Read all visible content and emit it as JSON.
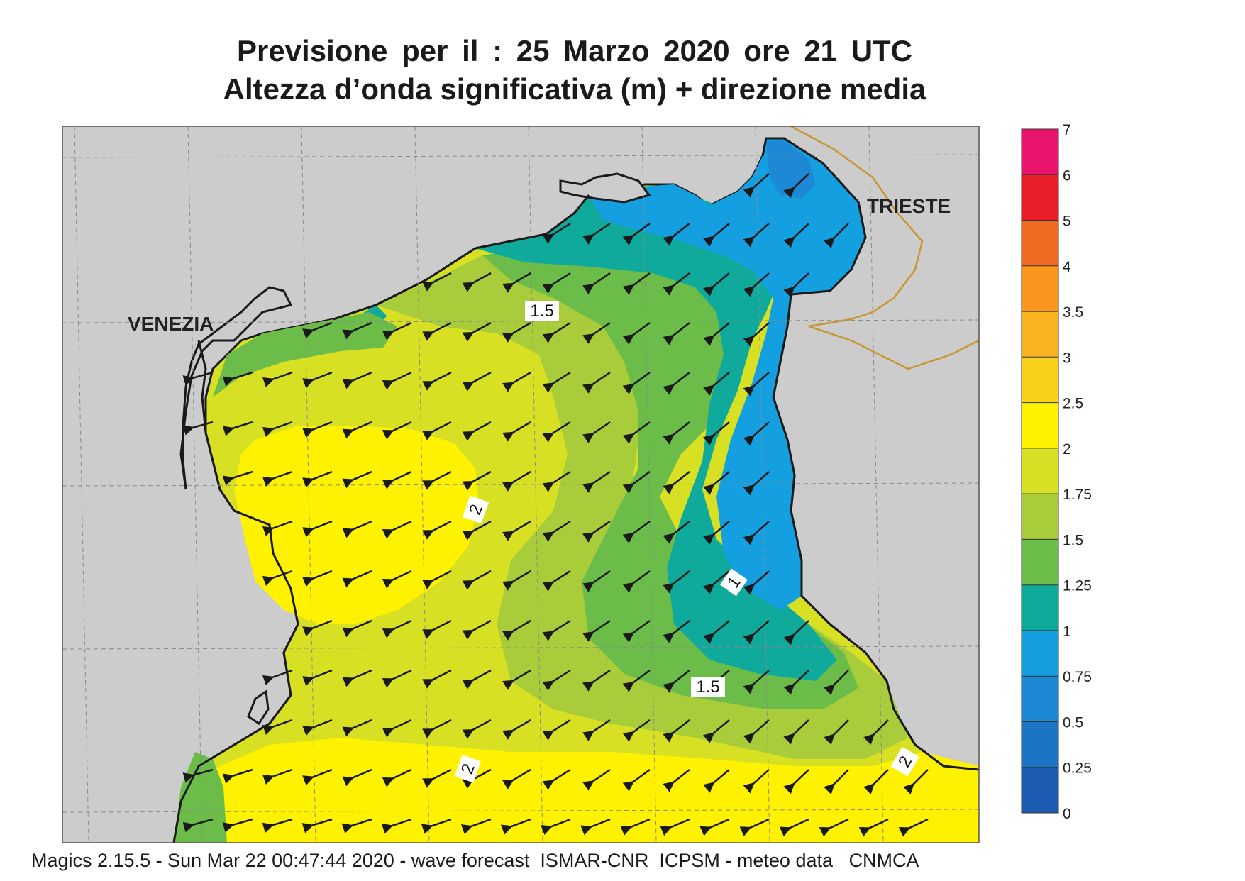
{
  "title": {
    "line1": "Previsione per il  :  25   Marzo   2020   ore 21 UTC",
    "line2": "Altezza d’onda significativa (m) + direzione media"
  },
  "places": {
    "venezia": "VENEZIA",
    "trieste": "TRIESTE"
  },
  "contour_labels": {
    "north_1_5": "1.5",
    "center_2": "2",
    "east_1": "1",
    "south_1_5": "1.5",
    "south_2": "2",
    "southeast_2": "2"
  },
  "colorbar": {
    "ticks": [
      "7",
      "6",
      "5",
      "4",
      "3.5",
      "3",
      "2.5",
      "2",
      "1.75",
      "1.5",
      "1.25",
      "1",
      "0.75",
      "0.5",
      "0.25",
      "0"
    ],
    "colors": [
      "#e8146e",
      "#e81e2a",
      "#f06a22",
      "#f8961e",
      "#f8b41e",
      "#f8d21a",
      "#fff200",
      "#d8e024",
      "#a8cc3a",
      "#6cbc4a",
      "#10aa9c",
      "#14a0e0",
      "#1c88d6",
      "#1c74c4",
      "#1c5cb2"
    ]
  },
  "colors": {
    "land": "#cccccc",
    "coast": "#1a1a1a",
    "border": "#c8962e",
    "grid": "#8a8a8a",
    "arrow": "#1a1a1a"
  },
  "footer": "Magics 2.15.5 - Sun Mar 22 00:47:44 2020 - wave forecast  ISMAR-CNR  ICPSM - meteo data   CNMCA"
}
